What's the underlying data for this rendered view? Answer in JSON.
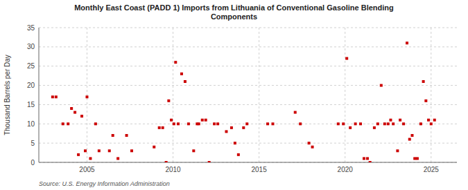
{
  "chart_data": {
    "type": "scatter",
    "title": "Monthly East Coast (PADD 1) Imports from Lithuania of Conventional Gasoline Blending\nComponents",
    "y_label": "Thousand Barrels per Day",
    "annotations": [
      "Source: U.S. Energy Information Administration"
    ],
    "color": "#cc0000",
    "marker": "square",
    "grid": true,
    "xlim": [
      2002.2,
      2026.5
    ],
    "ylim": [
      0,
      35
    ],
    "xticks": [
      2005,
      2010,
      2015,
      2020,
      2025
    ],
    "yticks": [
      0,
      5,
      10,
      15,
      20,
      25,
      30,
      35
    ],
    "x": [
      2003.0,
      2003.2,
      2003.6,
      2003.9,
      2004.1,
      2004.3,
      2004.5,
      2004.7,
      2004.9,
      2005.0,
      2005.2,
      2005.5,
      2005.7,
      2006.3,
      2006.5,
      2006.8,
      2007.3,
      2007.6,
      2008.9,
      2009.2,
      2009.4,
      2009.6,
      2009.75,
      2009.9,
      2010.05,
      2010.15,
      2010.3,
      2010.5,
      2010.7,
      2010.9,
      2011.2,
      2011.4,
      2011.5,
      2011.7,
      2011.9,
      2012.1,
      2012.4,
      2012.6,
      2013.1,
      2013.4,
      2013.6,
      2013.8,
      2014.1,
      2014.3,
      2015.5,
      2015.8,
      2017.1,
      2017.4,
      2017.9,
      2018.1,
      2019.6,
      2019.9,
      2020.1,
      2020.3,
      2020.6,
      2020.9,
      2021.1,
      2021.3,
      2021.45,
      2021.7,
      2021.9,
      2022.1,
      2022.3,
      2022.5,
      2022.65,
      2022.8,
      2023.05,
      2023.2,
      2023.4,
      2023.6,
      2023.75,
      2023.9,
      2024.05,
      2024.2,
      2024.4,
      2024.55,
      2024.7,
      2024.85,
      2025.0,
      2025.2
    ],
    "values": [
      17,
      17,
      10,
      10,
      14,
      13,
      2,
      12,
      3,
      17,
      1,
      10,
      3,
      3,
      7,
      1,
      7,
      3,
      4,
      9,
      9,
      0,
      16,
      11,
      10,
      26,
      10,
      23,
      21,
      10,
      3,
      10,
      10,
      11,
      11,
      0,
      10,
      10,
      8,
      9,
      5,
      2,
      9,
      10,
      10,
      10,
      13,
      10,
      5,
      4,
      10,
      10,
      27,
      9,
      10,
      10,
      1,
      1,
      0,
      9,
      10,
      20,
      10,
      10,
      11,
      10,
      3,
      11,
      10,
      31,
      6,
      7,
      1,
      1,
      10,
      21,
      16,
      11,
      10,
      11
    ]
  }
}
